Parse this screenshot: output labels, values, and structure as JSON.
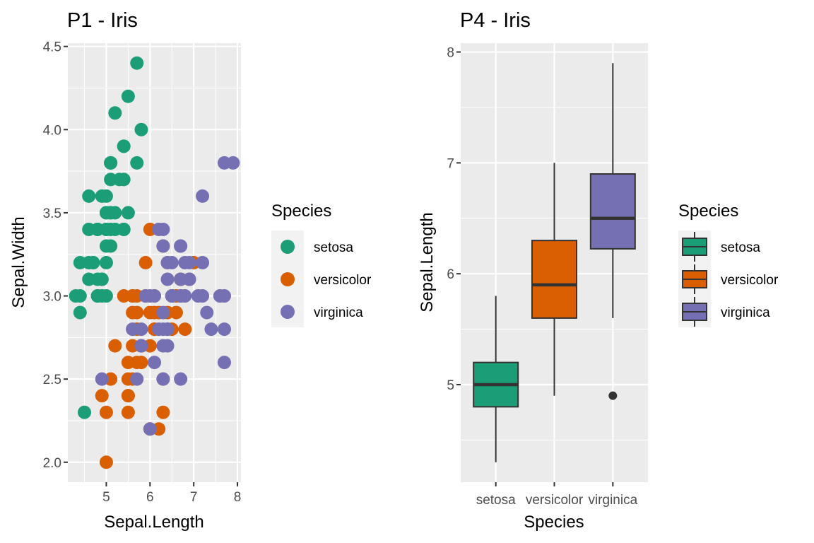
{
  "chart_data": [
    {
      "type": "scatter",
      "title": "P1 - Iris",
      "xlabel": "Sepal.Length",
      "ylabel": "Sepal.Width",
      "xlim": [
        4.12,
        8.08
      ],
      "ylim": [
        1.88,
        4.52
      ],
      "xticks": [
        5,
        6,
        7,
        8
      ],
      "xtick_labels": [
        "5",
        "6",
        "7",
        "8"
      ],
      "yticks": [
        2.0,
        2.5,
        3.0,
        3.5,
        4.0,
        4.5
      ],
      "ytick_labels": [
        "2.0",
        "2.5",
        "3.0",
        "3.5",
        "4.0",
        "4.5"
      ],
      "grid": true,
      "legend": {
        "title": "Species",
        "position": "right",
        "entries": [
          "setosa",
          "versicolor",
          "virginica"
        ]
      },
      "colors": {
        "setosa": "#1B9E77",
        "versicolor": "#D95F02",
        "virginica": "#7570B3"
      },
      "series": [
        {
          "name": "setosa",
          "x": [
            5.1,
            4.9,
            4.7,
            4.6,
            5.0,
            5.4,
            4.6,
            5.0,
            4.4,
            4.9,
            5.4,
            4.8,
            4.8,
            4.3,
            5.8,
            5.7,
            5.4,
            5.1,
            5.7,
            5.1,
            5.4,
            5.1,
            4.6,
            5.1,
            4.8,
            5.0,
            5.0,
            5.2,
            5.2,
            4.7,
            4.8,
            5.4,
            5.2,
            5.5,
            4.9,
            5.0,
            5.5,
            4.9,
            4.4,
            5.1,
            5.0,
            4.5,
            4.4,
            5.0,
            5.1,
            4.8,
            5.1,
            4.6,
            5.3,
            5.0
          ],
          "y": [
            3.5,
            3.0,
            3.2,
            3.1,
            3.6,
            3.9,
            3.4,
            3.4,
            2.9,
            3.1,
            3.7,
            3.4,
            3.0,
            3.0,
            4.0,
            4.4,
            3.9,
            3.5,
            3.8,
            3.8,
            3.4,
            3.7,
            3.6,
            3.3,
            3.4,
            3.0,
            3.4,
            3.5,
            3.4,
            3.2,
            3.1,
            3.4,
            4.1,
            4.2,
            3.1,
            3.2,
            3.5,
            3.6,
            3.0,
            3.4,
            3.5,
            2.3,
            3.2,
            3.5,
            3.8,
            3.0,
            3.8,
            3.2,
            3.7,
            3.3
          ]
        },
        {
          "name": "versicolor",
          "x": [
            7.0,
            6.4,
            6.9,
            5.5,
            6.5,
            5.7,
            6.3,
            4.9,
            6.6,
            5.2,
            5.0,
            5.9,
            6.0,
            6.1,
            5.6,
            6.7,
            5.6,
            5.8,
            6.2,
            5.6,
            5.9,
            6.1,
            6.3,
            6.1,
            6.4,
            6.6,
            6.8,
            6.7,
            6.0,
            5.7,
            5.5,
            5.5,
            5.8,
            6.0,
            5.4,
            6.0,
            6.7,
            6.3,
            5.6,
            5.5,
            5.5,
            6.1,
            5.8,
            5.0,
            5.6,
            5.7,
            5.7,
            6.2,
            5.1,
            5.7
          ],
          "y": [
            3.2,
            3.2,
            3.1,
            2.3,
            2.8,
            2.8,
            3.3,
            2.4,
            2.9,
            2.7,
            2.0,
            3.0,
            2.2,
            2.9,
            2.9,
            3.1,
            3.0,
            2.7,
            2.2,
            2.5,
            3.2,
            2.8,
            2.5,
            2.8,
            2.9,
            3.0,
            2.8,
            3.0,
            2.9,
            2.6,
            2.4,
            2.4,
            2.7,
            2.7,
            3.0,
            3.4,
            3.1,
            2.3,
            3.0,
            2.5,
            2.6,
            3.0,
            2.6,
            2.3,
            2.7,
            3.0,
            2.9,
            2.9,
            2.5,
            2.8
          ]
        },
        {
          "name": "virginica",
          "x": [
            6.3,
            5.8,
            7.1,
            6.3,
            6.5,
            7.6,
            4.9,
            7.3,
            6.7,
            7.2,
            6.5,
            6.4,
            6.8,
            5.7,
            5.8,
            6.4,
            6.5,
            7.7,
            7.7,
            6.0,
            6.9,
            5.6,
            7.7,
            6.3,
            6.7,
            7.2,
            6.2,
            6.1,
            6.4,
            7.2,
            7.4,
            7.9,
            6.4,
            6.3,
            6.1,
            7.7,
            6.3,
            6.4,
            6.0,
            6.9,
            6.7,
            6.9,
            5.8,
            6.8,
            6.7,
            6.7,
            6.3,
            6.5,
            6.2,
            5.9
          ],
          "y": [
            3.3,
            2.7,
            3.0,
            2.9,
            3.0,
            3.0,
            2.5,
            2.9,
            2.5,
            3.6,
            3.2,
            2.7,
            3.0,
            2.5,
            2.8,
            3.2,
            3.0,
            3.8,
            2.6,
            2.2,
            3.2,
            2.8,
            2.8,
            2.7,
            3.3,
            3.2,
            2.8,
            3.0,
            2.8,
            3.0,
            2.8,
            3.8,
            2.8,
            2.8,
            2.6,
            3.0,
            3.4,
            3.1,
            3.0,
            3.1,
            3.1,
            3.1,
            2.7,
            3.2,
            3.3,
            3.0,
            2.5,
            3.0,
            3.4,
            3.0
          ]
        }
      ]
    },
    {
      "type": "box",
      "title": "P4 - Iris",
      "xlabel": "Species",
      "ylabel": "Sepal.Length",
      "categories": [
        "setosa",
        "versicolor",
        "virginica"
      ],
      "ylim": [
        4.12,
        8.08
      ],
      "yticks": [
        5,
        6,
        7,
        8
      ],
      "ytick_labels": [
        "5",
        "6",
        "7",
        "8"
      ],
      "grid": true,
      "legend": {
        "title": "Species",
        "position": "right",
        "entries": [
          "setosa",
          "versicolor",
          "virginica"
        ]
      },
      "colors": {
        "setosa": "#1B9E77",
        "versicolor": "#D95F02",
        "virginica": "#7570B3"
      },
      "boxes": [
        {
          "name": "setosa",
          "min": 4.3,
          "q1": 4.8,
          "median": 5.0,
          "q3": 5.2,
          "max": 5.8,
          "outliers": []
        },
        {
          "name": "versicolor",
          "min": 4.9,
          "q1": 5.6,
          "median": 5.9,
          "q3": 6.3,
          "max": 7.0,
          "outliers": []
        },
        {
          "name": "virginica",
          "min": 5.6,
          "q1": 6.225,
          "median": 6.5,
          "q3": 6.9,
          "max": 7.9,
          "outliers": [
            4.9
          ]
        }
      ]
    }
  ]
}
